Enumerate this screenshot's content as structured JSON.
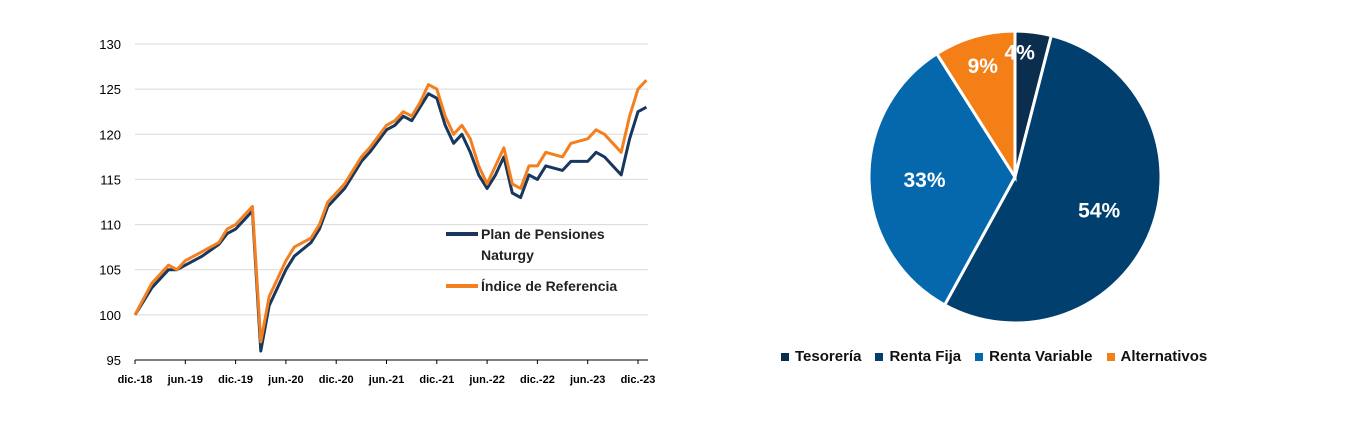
{
  "chart_data": [
    {
      "type": "line",
      "x_ticks": [
        "dic.-18",
        "jun.-19",
        "dic.-19",
        "jun.-20",
        "dic.-20",
        "jun.-21",
        "dic.-21",
        "jun.-22",
        "dic.-22",
        "jun.-23",
        "dic.-23"
      ],
      "y_ticks": [
        "95",
        "100",
        "105",
        "110",
        "115",
        "120",
        "125",
        "130"
      ],
      "ylim": [
        95,
        130
      ],
      "grid": "horizontal",
      "legend_position": "right",
      "series": [
        {
          "name": "Plan de Pensiones Naturgy",
          "color": "#17375e",
          "points": [
            [
              "dic.-18",
              100.0
            ],
            [
              "feb.-19",
              103.0
            ],
            [
              "abr.-19",
              105.0
            ],
            [
              "may.-19",
              105.0
            ],
            [
              "jun.-19",
              105.5
            ],
            [
              "ago.-19",
              106.5
            ],
            [
              "oct.-19",
              107.8
            ],
            [
              "nov.-19",
              109.0
            ],
            [
              "dic.-19",
              109.5
            ],
            [
              "ene.-20",
              110.5
            ],
            [
              "feb.-20",
              111.5
            ],
            [
              "mar.-20",
              96.0
            ],
            [
              "abr.-20",
              101.0
            ],
            [
              "may.-20",
              103.0
            ],
            [
              "jun.-20",
              105.0
            ],
            [
              "jul.-20",
              106.5
            ],
            [
              "sep.-20",
              108.0
            ],
            [
              "oct.-20",
              109.5
            ],
            [
              "nov.-20",
              112.0
            ],
            [
              "dic.-20",
              113.0
            ],
            [
              "ene.-21",
              114.0
            ],
            [
              "mar.-21",
              117.0
            ],
            [
              "abr.-21",
              118.0
            ],
            [
              "jun.-21",
              120.5
            ],
            [
              "jul.-21",
              121.0
            ],
            [
              "ago.-21",
              122.0
            ],
            [
              "sep.-21",
              121.5
            ],
            [
              "oct.-21",
              123.0
            ],
            [
              "nov.-21",
              124.5
            ],
            [
              "dic.-21",
              124.0
            ],
            [
              "ene.-22",
              121.0
            ],
            [
              "feb.-22",
              119.0
            ],
            [
              "mar.-22",
              120.0
            ],
            [
              "abr.-22",
              118.0
            ],
            [
              "may.-22",
              115.5
            ],
            [
              "jun.-22",
              114.0
            ],
            [
              "jul.-22",
              115.5
            ],
            [
              "ago.-22",
              117.5
            ],
            [
              "sep.-22",
              113.5
            ],
            [
              "oct.-22",
              113.0
            ],
            [
              "nov.-22",
              115.5
            ],
            [
              "dic.-22",
              115.0
            ],
            [
              "ene.-23",
              116.5
            ],
            [
              "mar.-23",
              116.0
            ],
            [
              "abr.-23",
              117.0
            ],
            [
              "jun.-23",
              117.0
            ],
            [
              "jul.-23",
              118.0
            ],
            [
              "ago.-23",
              117.5
            ],
            [
              "sep.-23",
              116.5
            ],
            [
              "oct.-23",
              115.5
            ],
            [
              "nov.-23",
              119.5
            ],
            [
              "dic.-23",
              122.5
            ],
            [
              "ene.-24",
              123.0
            ]
          ]
        },
        {
          "name": "Índice de Referencia",
          "color": "#f47f1f",
          "points": [
            [
              "dic.-18",
              100.0
            ],
            [
              "feb.-19",
              103.5
            ],
            [
              "abr.-19",
              105.5
            ],
            [
              "may.-19",
              105.0
            ],
            [
              "jun.-19",
              106.0
            ],
            [
              "ago.-19",
              107.0
            ],
            [
              "oct.-19",
              108.0
            ],
            [
              "nov.-19",
              109.5
            ],
            [
              "dic.-19",
              110.0
            ],
            [
              "ene.-20",
              111.0
            ],
            [
              "feb.-20",
              112.0
            ],
            [
              "mar.-20",
              97.0
            ],
            [
              "abr.-20",
              102.0
            ],
            [
              "may.-20",
              104.0
            ],
            [
              "jun.-20",
              106.0
            ],
            [
              "jul.-20",
              107.5
            ],
            [
              "sep.-20",
              108.5
            ],
            [
              "oct.-20",
              110.0
            ],
            [
              "nov.-20",
              112.5
            ],
            [
              "dic.-20",
              113.5
            ],
            [
              "ene.-21",
              114.5
            ],
            [
              "mar.-21",
              117.5
            ],
            [
              "abr.-21",
              118.5
            ],
            [
              "jun.-21",
              121.0
            ],
            [
              "jul.-21",
              121.5
            ],
            [
              "ago.-21",
              122.5
            ],
            [
              "sep.-21",
              122.0
            ],
            [
              "oct.-21",
              123.5
            ],
            [
              "nov.-21",
              125.5
            ],
            [
              "dic.-21",
              125.0
            ],
            [
              "ene.-22",
              122.0
            ],
            [
              "feb.-22",
              120.0
            ],
            [
              "mar.-22",
              121.0
            ],
            [
              "abr.-22",
              119.5
            ],
            [
              "may.-22",
              116.5
            ],
            [
              "jun.-22",
              114.5
            ],
            [
              "jul.-22",
              116.5
            ],
            [
              "ago.-22",
              118.5
            ],
            [
              "sep.-22",
              114.5
            ],
            [
              "oct.-22",
              114.0
            ],
            [
              "nov.-22",
              116.5
            ],
            [
              "dic.-22",
              116.5
            ],
            [
              "ene.-23",
              118.0
            ],
            [
              "mar.-23",
              117.5
            ],
            [
              "abr.-23",
              119.0
            ],
            [
              "jun.-23",
              119.5
            ],
            [
              "jul.-23",
              120.5
            ],
            [
              "ago.-23",
              120.0
            ],
            [
              "sep.-23",
              119.0
            ],
            [
              "oct.-23",
              118.0
            ],
            [
              "nov.-23",
              122.0
            ],
            [
              "dic.-23",
              125.0
            ],
            [
              "ene.-24",
              126.0
            ]
          ]
        }
      ],
      "legend_labels": {
        "naturgy_line1": "Plan de Pensiones",
        "naturgy_line2": "Naturgy",
        "index": "Índice de Referencia"
      }
    },
    {
      "type": "pie",
      "start": "top",
      "direction": "clockwise",
      "legend_position": "bottom",
      "slices": [
        {
          "label": "Tesorería",
          "value": 4,
          "text": "4%",
          "color": "#0b2d4e"
        },
        {
          "label": "Renta Fija",
          "value": 54,
          "text": "54%",
          "color": "#003f6e"
        },
        {
          "label": "Renta Variable",
          "value": 33,
          "text": "33%",
          "color": "#0568ad"
        },
        {
          "label": "Alternativos",
          "value": 9,
          "text": "9%",
          "color": "#f57f17"
        }
      ]
    }
  ]
}
